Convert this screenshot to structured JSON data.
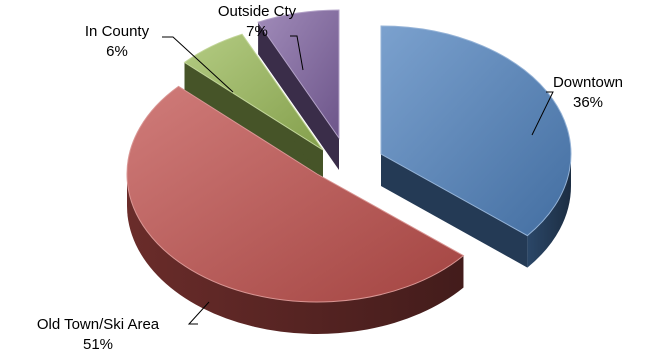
{
  "chart_data": {
    "type": "pie",
    "style": "3d-exploded",
    "legend": "none",
    "slices": [
      {
        "label": "Downtown",
        "value": 36,
        "display": "36%",
        "color": "#4F81BD"
      },
      {
        "label": "Old Town/Ski Area",
        "value": 51,
        "display": "51%",
        "color": "#C0504D"
      },
      {
        "label": "In County",
        "value": 6,
        "display": "6%",
        "color": "#9BBB59"
      },
      {
        "label": "Outside Cty",
        "value": 7,
        "display": "7%",
        "color": "#8064A2"
      }
    ]
  }
}
